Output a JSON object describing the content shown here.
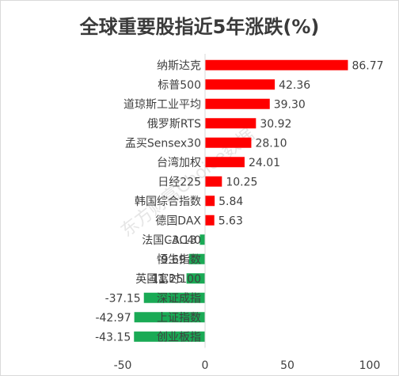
{
  "chart_data": {
    "type": "bar",
    "orientation": "horizontal",
    "title": "全球重要股指近5年涨跌(%)",
    "categories": [
      "纳斯达克",
      "标普500",
      "道琼斯工业平均",
      "俄罗斯RTS",
      "孟买Sensex30",
      "台湾加权",
      "日经225",
      "韩国综合指数",
      "德国DAX",
      "法国CAC40",
      "恒生指数",
      "英国富时100",
      "深证成指",
      "上证指数",
      "创业板指"
    ],
    "values": [
      86.77,
      42.36,
      39.3,
      30.92,
      28.1,
      24.01,
      10.25,
      5.84,
      5.63,
      -3.13,
      -9.69,
      -11.25,
      -37.15,
      -42.97,
      -43.15
    ],
    "value_labels": [
      "86.77",
      "42.36",
      "39.30",
      "30.92",
      "28.10",
      "24.01",
      "10.25",
      "5.84",
      "5.63",
      "-3.13",
      "-9.69",
      "-11.25",
      "-37.15",
      "-42.97",
      "-43.15"
    ],
    "xlim": [
      -50,
      100
    ],
    "xticks": [
      -50,
      0,
      50,
      100
    ],
    "xtick_labels": [
      "-50",
      "0",
      "50",
      "100"
    ],
    "grid": false,
    "colors": {
      "positive": "#ff0000",
      "negative": "#1aaa55"
    },
    "watermark": "东方财富Choice数据"
  }
}
